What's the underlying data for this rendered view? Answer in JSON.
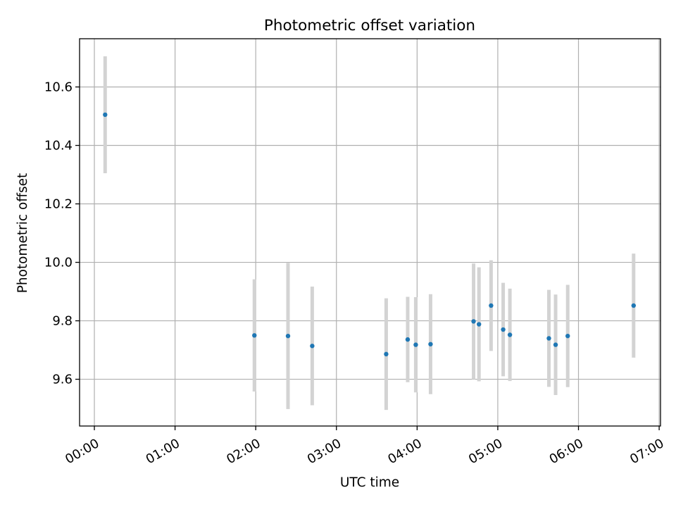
{
  "chart_data": {
    "type": "scatter",
    "title": "Photometric offset variation",
    "xlabel": "UTC time",
    "ylabel": "Photometric offset",
    "x_unit": "UTC time of day (HH:MM)",
    "xlim": [
      "-00:11",
      "07:01"
    ],
    "ylim": [
      9.44,
      10.765
    ],
    "x_ticks": [
      "00:00",
      "01:00",
      "02:00",
      "03:00",
      "04:00",
      "05:00",
      "06:00",
      "07:00"
    ],
    "y_ticks": [
      "9.6",
      "9.8",
      "10.0",
      "10.2",
      "10.4",
      "10.6"
    ],
    "grid": true,
    "marker_color": "#1f77b4",
    "errorbar_color": "#d3d3d3",
    "points": [
      {
        "x": "00:08",
        "y": 10.505,
        "err": 0.2
      },
      {
        "x": "01:59",
        "y": 9.75,
        "err": 0.192
      },
      {
        "x": "02:24",
        "y": 9.748,
        "err": 0.25
      },
      {
        "x": "02:42",
        "y": 9.714,
        "err": 0.203
      },
      {
        "x": "03:37",
        "y": 9.686,
        "err": 0.191
      },
      {
        "x": "03:53",
        "y": 9.736,
        "err": 0.146
      },
      {
        "x": "03:59",
        "y": 9.718,
        "err": 0.163
      },
      {
        "x": "04:10",
        "y": 9.72,
        "err": 0.171
      },
      {
        "x": "04:42",
        "y": 9.798,
        "err": 0.198
      },
      {
        "x": "04:46",
        "y": 9.788,
        "err": 0.195
      },
      {
        "x": "04:55",
        "y": 9.852,
        "err": 0.155
      },
      {
        "x": "05:04",
        "y": 9.77,
        "err": 0.16
      },
      {
        "x": "05:09",
        "y": 9.752,
        "err": 0.158
      },
      {
        "x": "05:38",
        "y": 9.74,
        "err": 0.166
      },
      {
        "x": "05:43",
        "y": 9.718,
        "err": 0.172
      },
      {
        "x": "05:52",
        "y": 9.748,
        "err": 0.175
      },
      {
        "x": "06:41",
        "y": 9.852,
        "err": 0.178
      }
    ]
  }
}
